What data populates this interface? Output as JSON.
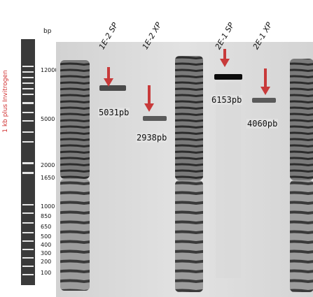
{
  "side_label": "1 kb plus Invitrogen",
  "bp_title": "bp",
  "lane_labels": [
    "1E-2 SP",
    "1E-2 XP",
    "2E-1 SP",
    "2E-1 XP"
  ],
  "ladder_markers": [
    "12000",
    "5000",
    "2000",
    "1650",
    "1000",
    "850",
    "650",
    "500",
    "400",
    "300",
    "200",
    "100"
  ],
  "band_sizes": [
    "5031pb",
    "2938pb",
    "6153pb",
    "4060pb"
  ],
  "arrow_color": "#c83a3a"
}
